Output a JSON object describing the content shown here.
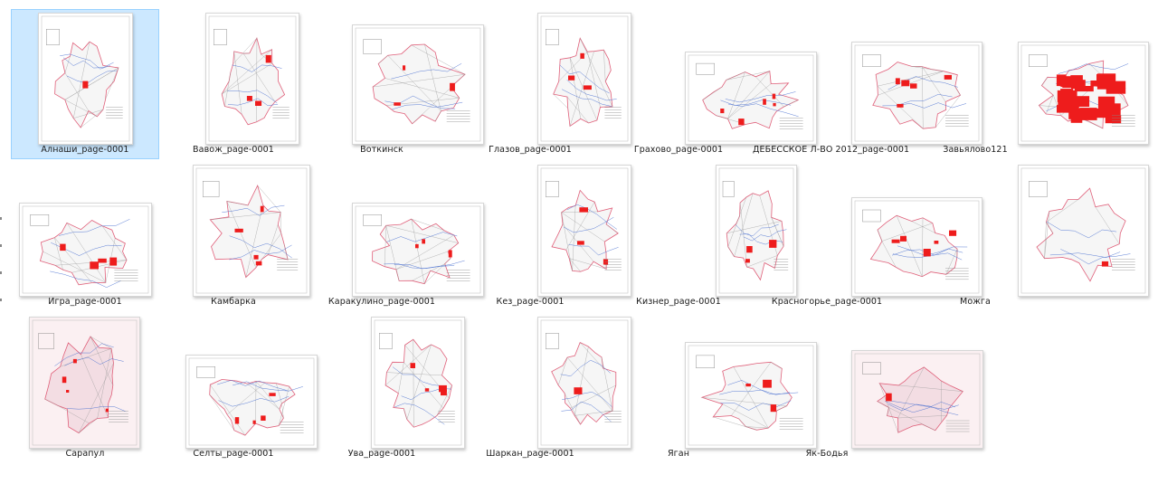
{
  "folder": {
    "view": "large-icons",
    "files": [
      {
        "name": "Алнаши_page-0001",
        "thumbnail": "district-map",
        "selected": true
      },
      {
        "name": "Вавож_page-0001",
        "thumbnail": "district-map",
        "selected": false
      },
      {
        "name": "Воткинск",
        "thumbnail": "district-map",
        "selected": false
      },
      {
        "name": "Глазов_page-0001",
        "thumbnail": "district-map",
        "selected": false
      },
      {
        "name": "Грахово_page-0001",
        "thumbnail": "district-map",
        "selected": false
      },
      {
        "name": "ДЕБЕССКОЕ Л-ВО 2012_page-0001",
        "thumbnail": "district-map",
        "selected": false
      },
      {
        "name": "Завьялово121",
        "thumbnail": "district-map",
        "selected": false
      },
      {
        "name": "Игра_page-0001",
        "thumbnail": "district-map",
        "selected": false
      },
      {
        "name": "Камбарка",
        "thumbnail": "district-map",
        "selected": false
      },
      {
        "name": "Каракулино_page-0001",
        "thumbnail": "district-map",
        "selected": false
      },
      {
        "name": "Кез_page-0001",
        "thumbnail": "district-map",
        "selected": false
      },
      {
        "name": "Кизнер_page-0001",
        "thumbnail": "district-map",
        "selected": false
      },
      {
        "name": "Красногорье_page-0001",
        "thumbnail": "district-map",
        "selected": false
      },
      {
        "name": "Можга",
        "thumbnail": "district-map",
        "selected": false
      },
      {
        "name": "Сарапул",
        "thumbnail": "district-map",
        "selected": false
      },
      {
        "name": "Селты_page-0001",
        "thumbnail": "district-map",
        "selected": false
      },
      {
        "name": "Ува_page-0001",
        "thumbnail": "district-map",
        "selected": false
      },
      {
        "name": "Шаркан_page-0001",
        "thumbnail": "district-map",
        "selected": false
      },
      {
        "name": "Яган",
        "thumbnail": "district-map",
        "selected": false
      },
      {
        "name": "Як-Бодья",
        "thumbnail": "district-map",
        "selected": false
      }
    ]
  },
  "colors": {
    "selection_fill": "#cce8ff",
    "selection_border": "#99d1ff",
    "map_boundary": "#e0607a",
    "map_forest": "#ee1c1c",
    "map_water": "#4a6fd0",
    "map_road": "#9a9a9a",
    "tinted_paper": "#fbf0f2"
  }
}
